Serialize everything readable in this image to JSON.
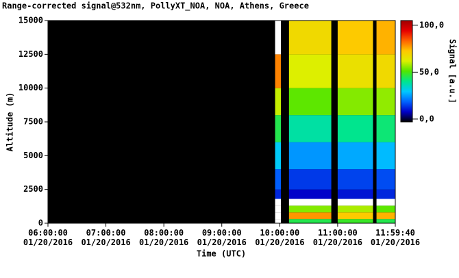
{
  "chart_data": {
    "type": "heatmap",
    "title": "Range-corrected signal@532nm, PollyXT_NOA, NOA, Athens, Greece",
    "xlabel": "Time (UTC)",
    "ylabel": "Altitude (m)",
    "colorbar_label": "Signal [a.u.]",
    "xlim": [
      6,
      11.9944
    ],
    "ylim": [
      0,
      15000
    ],
    "xticks": [
      {
        "value": 6,
        "label": "06:00:00\n01/20/2016"
      },
      {
        "value": 7,
        "label": "07:00:00\n01/20/2016"
      },
      {
        "value": 8,
        "label": "08:00:00\n01/20/2016"
      },
      {
        "value": 9,
        "label": "09:00:00\n01/20/2016"
      },
      {
        "value": 10,
        "label": "10:00:00\n01/20/2016"
      },
      {
        "value": 11,
        "label": "11:00:00\n01/20/2016"
      },
      {
        "value": 11.9944,
        "label": "11:59:40\n01/20/2016"
      }
    ],
    "yticks": [
      0,
      2500,
      5000,
      7500,
      10000,
      12500,
      15000
    ],
    "clim": [
      -3,
      105
    ],
    "cticks": [
      {
        "value": 0,
        "label": "0,0"
      },
      {
        "value": 50,
        "label": "50,0"
      },
      {
        "value": 100,
        "label": "100,0"
      }
    ],
    "colormap": [
      "#000000",
      "#0000c8",
      "#0064ff",
      "#00c8ff",
      "#00e68c",
      "#50e600",
      "#dcf000",
      "#ffc800",
      "#ff6400",
      "#e60000",
      "#a00000"
    ],
    "over_color": "#ffffff",
    "background": "#000000",
    "x_edges": [
      9.92,
      10.02,
      10.16,
      10.89,
      11.0,
      11.61,
      11.67,
      11.99
    ],
    "y_edges": [
      0,
      300,
      800,
      1300,
      1800,
      2500,
      4000,
      6000,
      8000,
      10000,
      12500,
      15000
    ],
    "z": [
      [
        110,
        null,
        45,
        null,
        48,
        null,
        45
      ],
      [
        110,
        null,
        78,
        null,
        72,
        null,
        75
      ],
      [
        110,
        null,
        55,
        null,
        58,
        null,
        52
      ],
      [
        110,
        null,
        110,
        null,
        110,
        null,
        110
      ],
      [
        12,
        null,
        8,
        null,
        10,
        null,
        12
      ],
      [
        18,
        null,
        14,
        null,
        15,
        null,
        16
      ],
      [
        30,
        null,
        24,
        null,
        26,
        null,
        28
      ],
      [
        45,
        null,
        38,
        null,
        40,
        null,
        42
      ],
      [
        60,
        null,
        52,
        null,
        55,
        null,
        56
      ],
      [
        80,
        null,
        62,
        null,
        66,
        null,
        68
      ],
      [
        110,
        null,
        68,
        null,
        72,
        null,
        75
      ]
    ]
  }
}
